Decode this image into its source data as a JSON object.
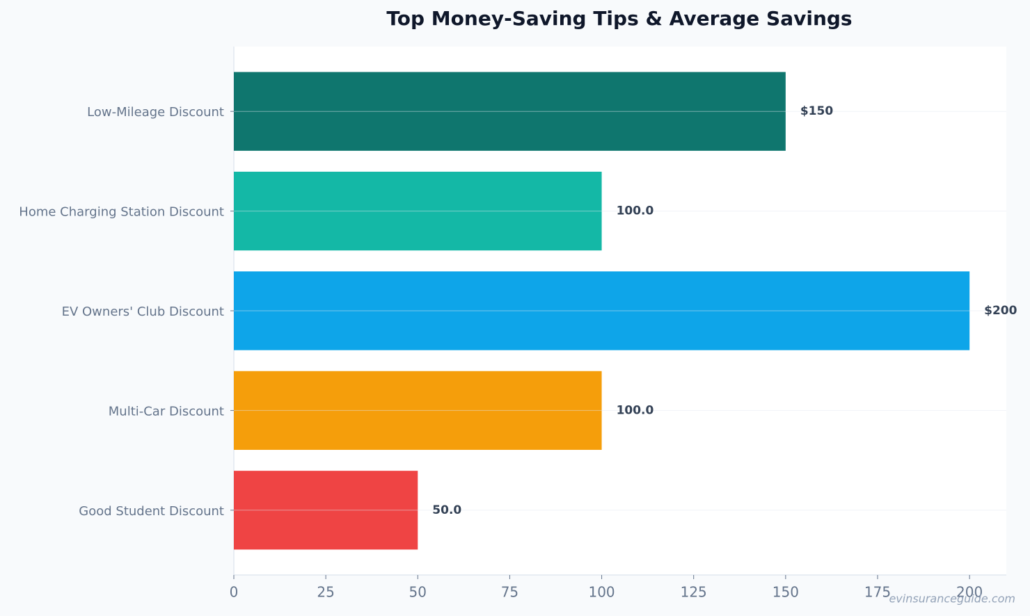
{
  "chart_data": {
    "type": "barh",
    "title": "Top Money-Saving Tips & Average Savings",
    "categories": [
      "Low-Mileage Discount",
      "Home Charging Station Discount",
      "EV Owners' Club Discount",
      "Multi-Car Discount",
      "Good Student Discount"
    ],
    "values": [
      150,
      100,
      200,
      100,
      50
    ],
    "value_labels": [
      "$150",
      "100.0",
      "$200",
      "100.0",
      "50.0"
    ],
    "colors": [
      "#0f766e",
      "#14b8a6",
      "#0ea5e9",
      "#f59e0b",
      "#ef4444"
    ],
    "xlim": [
      0,
      210
    ],
    "xticks": [
      0,
      25,
      50,
      75,
      100,
      125,
      150,
      175,
      200
    ],
    "grid": true,
    "watermark": "evinsuranceguide.com"
  }
}
